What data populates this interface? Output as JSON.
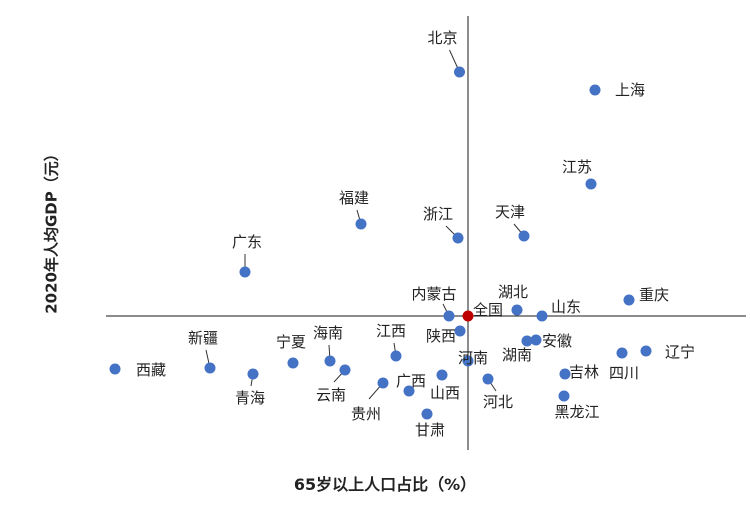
{
  "chart_data": {
    "type": "scatter",
    "title": "",
    "xlabel": "65岁以上人口占比（%）",
    "ylabel": "2020年人均GDP（元）",
    "axes": "quadrant (crossing at 全国 national average), no tick labels",
    "grid": false,
    "legend": "none",
    "colors": {
      "point": "#4472C4",
      "national": "#C00000"
    },
    "points": [
      {
        "name": "北京",
        "x": -0.85,
        "y": 12.2
      },
      {
        "name": "上海",
        "x": 12.7,
        "y": 11.3
      },
      {
        "name": "江苏",
        "x": 12.3,
        "y": 6.6
      },
      {
        "name": "天津",
        "x": 5.6,
        "y": 4.0
      },
      {
        "name": "浙江",
        "x": -1.0,
        "y": 3.9
      },
      {
        "name": "福建",
        "x": -10.7,
        "y": 4.6
      },
      {
        "name": "广东",
        "x": -22.3,
        "y": 2.2
      },
      {
        "name": "重庆",
        "x": 16.1,
        "y": 0.8
      },
      {
        "name": "湖北",
        "x": 4.9,
        "y": 0.3
      },
      {
        "name": "山东",
        "x": 7.4,
        "y": 0.0
      },
      {
        "name": "内蒙古",
        "x": -1.9,
        "y": 0.0
      },
      {
        "name": "全国",
        "x": 0.0,
        "y": 0.0,
        "national": true
      },
      {
        "name": "陕西",
        "x": -0.8,
        "y": -0.75
      },
      {
        "name": "湖南",
        "x": 5.9,
        "y": -1.25
      },
      {
        "name": "安徽",
        "x": 6.8,
        "y": -1.2
      },
      {
        "name": "辽宁",
        "x": 17.8,
        "y": -1.75
      },
      {
        "name": "四川",
        "x": 15.4,
        "y": -1.85
      },
      {
        "name": "河南",
        "x": 0.0,
        "y": -2.25
      },
      {
        "name": "江西",
        "x": -7.2,
        "y": -2.0
      },
      {
        "name": "新疆",
        "x": -25.8,
        "y": -2.6
      },
      {
        "name": "西藏",
        "x": -35.3,
        "y": -2.65
      },
      {
        "name": "青海",
        "x": -21.5,
        "y": -2.9
      },
      {
        "name": "宁夏",
        "x": -17.5,
        "y": -2.35
      },
      {
        "name": "海南",
        "x": -13.8,
        "y": -2.25
      },
      {
        "name": "云南",
        "x": -12.3,
        "y": -2.7
      },
      {
        "name": "吉林",
        "x": 9.7,
        "y": -2.9
      },
      {
        "name": "河北",
        "x": 2.0,
        "y": -3.15
      },
      {
        "name": "山西",
        "x": -2.6,
        "y": -2.95
      },
      {
        "name": "广西",
        "x": -5.9,
        "y": -3.75
      },
      {
        "name": "贵州",
        "x": -8.5,
        "y": -3.35
      },
      {
        "name": "黑龙江",
        "x": 9.6,
        "y": -4.0
      },
      {
        "name": "甘肃",
        "x": -4.1,
        "y": -4.9
      }
    ]
  }
}
